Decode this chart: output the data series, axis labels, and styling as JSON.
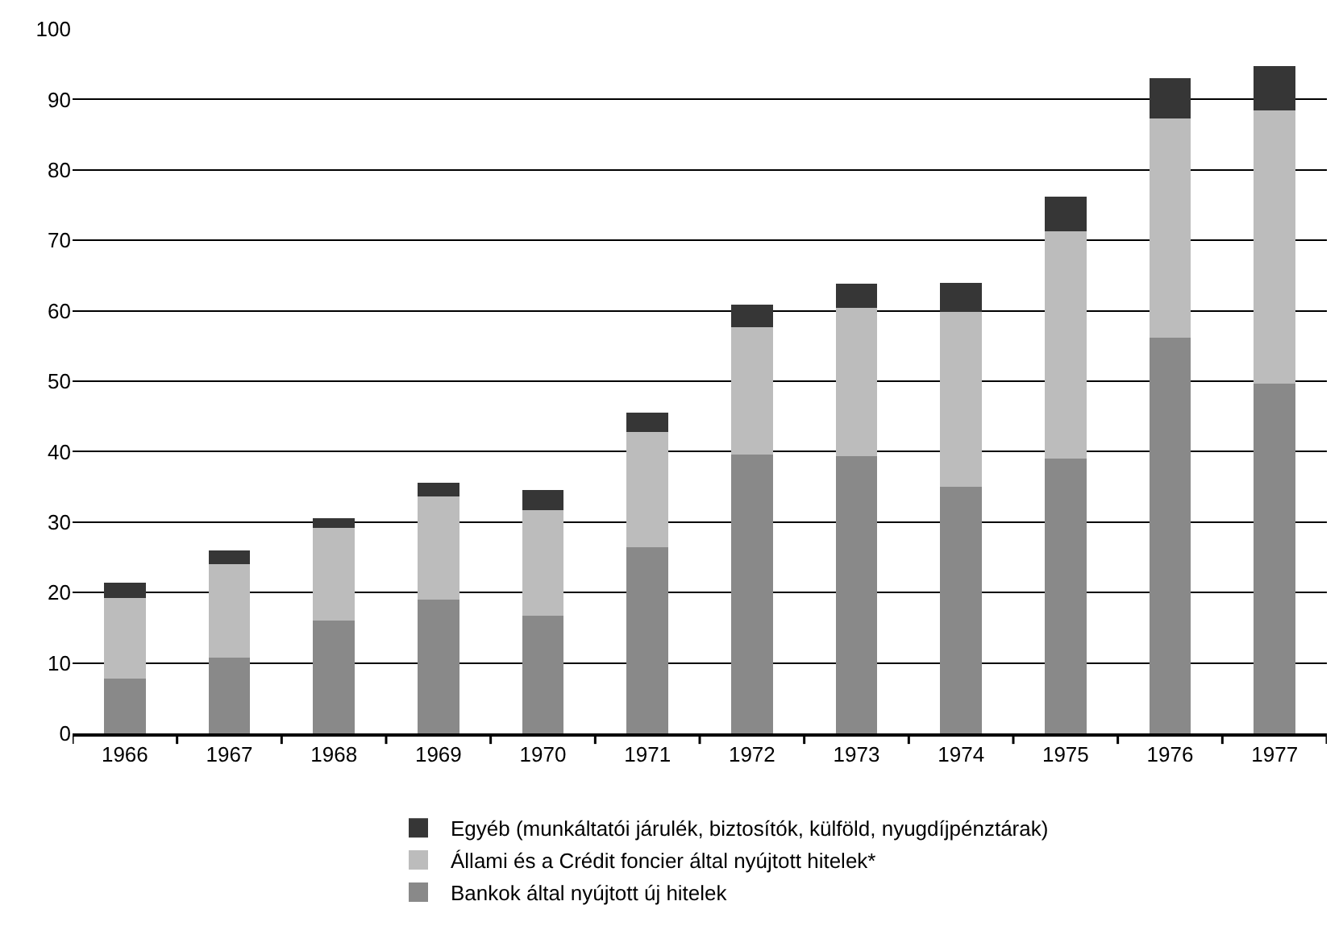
{
  "chart_data": {
    "type": "bar",
    "stacked": true,
    "categories": [
      "1966",
      "1967",
      "1968",
      "1969",
      "1970",
      "1971",
      "1972",
      "1973",
      "1974",
      "1975",
      "1976",
      "1977"
    ],
    "series": [
      {
        "name": "Bankok által nyújtott új hitelek",
        "color": "#898989",
        "values": [
          7.8,
          10.8,
          16,
          19,
          16.7,
          26.4,
          39.6,
          39.4,
          35,
          39,
          56.2,
          49.7
        ]
      },
      {
        "name": "Állami és a Crédit foncier által nyújtott hitelek*",
        "color": "#bcbcbc",
        "values": [
          11.4,
          13.2,
          13.2,
          14.6,
          15,
          16.4,
          18.1,
          21,
          24.8,
          32.3,
          31.1,
          38.7
        ]
      },
      {
        "name": "Egyéb (munkáltatói járulék, biztosítók, külföld, nyugdíjpénztárak)",
        "color": "#363636",
        "values": [
          2.2,
          2,
          1.4,
          2,
          2.9,
          2.7,
          3.2,
          3.4,
          4.2,
          4.9,
          5.7,
          6.3
        ]
      }
    ],
    "ylim": [
      0,
      100
    ],
    "yticks": [
      0,
      10,
      20,
      30,
      40,
      50,
      60,
      70,
      80,
      90,
      100
    ],
    "grid": "y",
    "legend": "bottom"
  }
}
